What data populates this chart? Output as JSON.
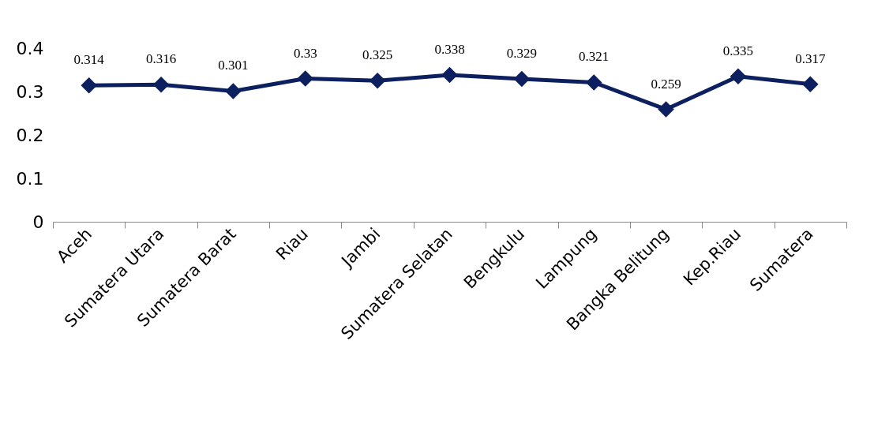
{
  "chart_data": {
    "type": "line",
    "categories": [
      "Aceh",
      "Sumatera Utara",
      "Sumatera Barat",
      "Riau",
      "Jambi",
      "Sumatera Selatan",
      "Bengkulu",
      "Lampung",
      "Bangka Belitung",
      "Kep.Riau",
      "Sumatera"
    ],
    "series": [
      {
        "color": "#0c1f5e",
        "values": [
          0.314,
          0.316,
          0.301,
          0.33,
          0.325,
          0.338,
          0.329,
          0.321,
          0.259,
          0.335,
          0.317
        ]
      }
    ],
    "ylim": [
      0,
      0.4
    ],
    "yticks": [
      0,
      0.1,
      0.2,
      0.3,
      0.4
    ],
    "grid": false,
    "marker": "diamond",
    "line_style": "solid",
    "data_labels": true
  }
}
